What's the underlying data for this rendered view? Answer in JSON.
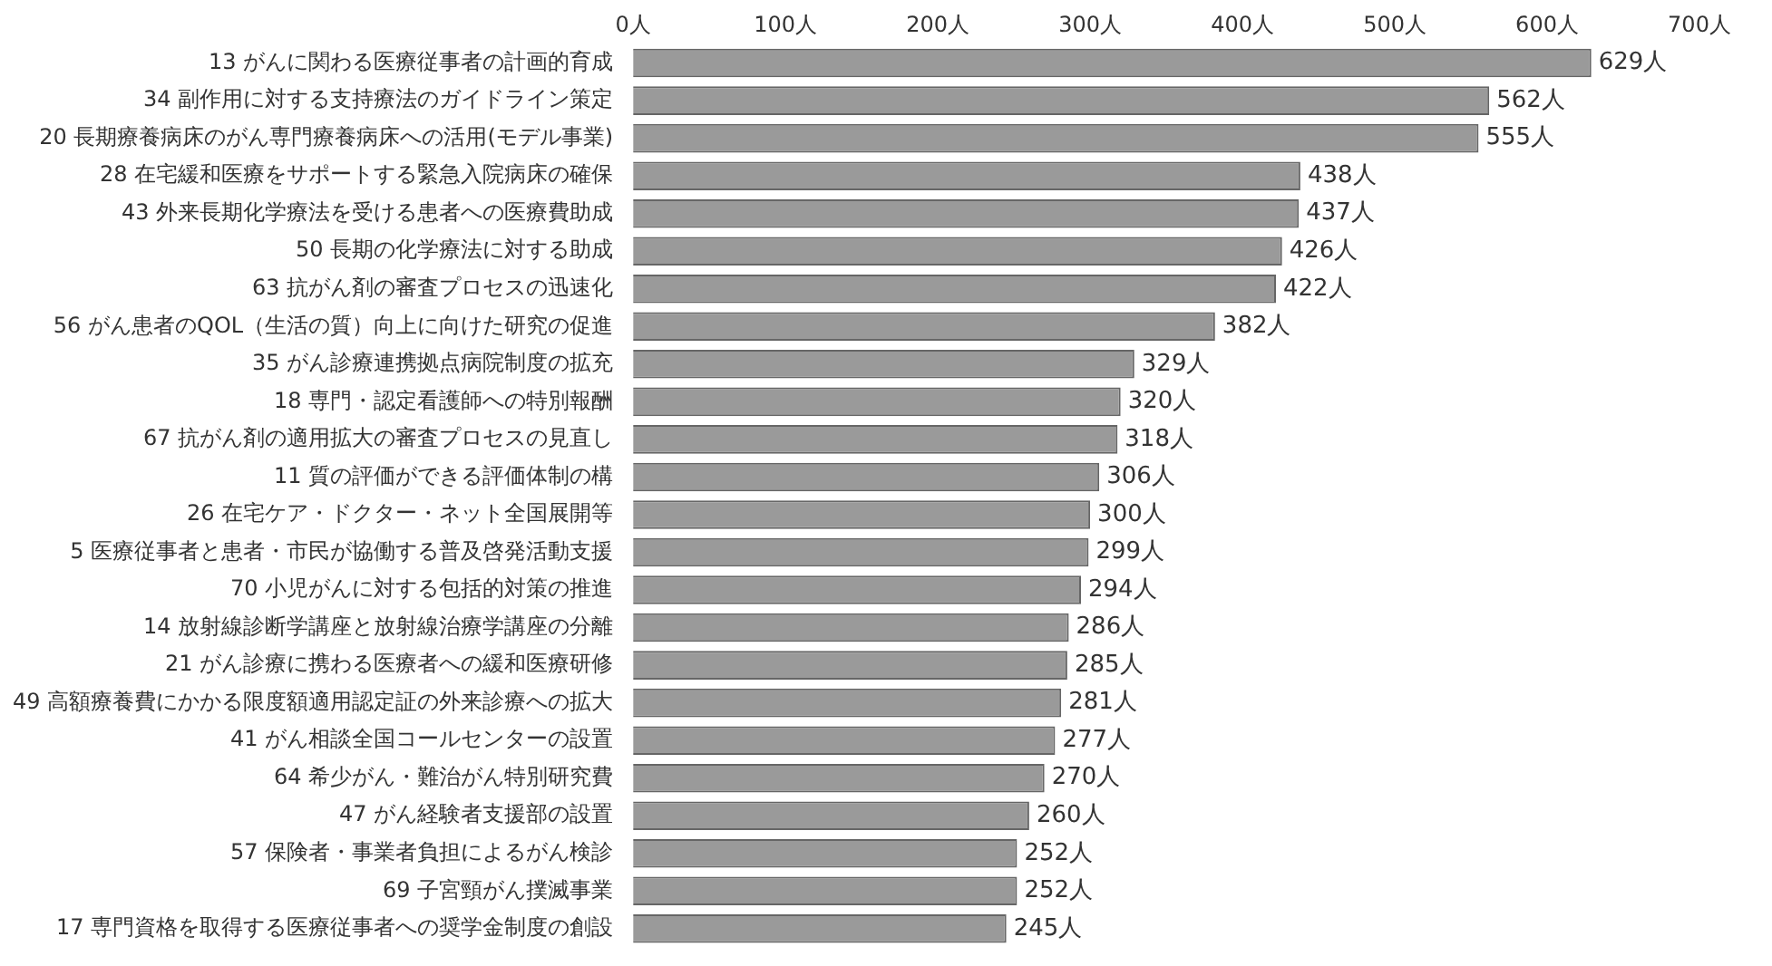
{
  "chart_data": {
    "type": "bar",
    "orientation": "horizontal",
    "categories": [
      "13 がんに関わる医療従事者の計画的育成",
      "34 副作用に対する支持療法のガイドライン策定",
      "20 長期療養病床のがん専門療養病床への活用(モデル事業)",
      "28 在宅緩和医療をサポートする緊急入院病床の確保",
      "43 外来長期化学療法を受ける患者への医療費助成",
      "50 長期の化学療法に対する助成",
      "63 抗がん剤の審査プロセスの迅速化",
      "56 がん患者のQOL（生活の質）向上に向けた研究の促進",
      "35 がん診療連携拠点病院制度の拡充",
      "18 専門・認定看護師への特別報酬",
      "67 抗がん剤の適用拡大の審査プロセスの見直し",
      "11 質の評価ができる評価体制の構",
      "26 在宅ケア・ドクター・ネット全国展開等",
      "5 医療従事者と患者・市民が協働する普及啓発活動支援",
      "70 小児がんに対する包括的対策の推進",
      "14 放射線診断学講座と放射線治療学講座の分離",
      "21 がん診療に携わる医療者への緩和医療研修",
      "49 高額療養費にかかる限度額適用認定証の外来診療への拡大",
      "41 がん相談全国コールセンターの設置",
      "64 希少がん・難治がん特別研究費",
      "47 がん経験者支援部の設置",
      "57 保険者・事業者負担によるがん検診",
      "69 子宮頸がん撲滅事業",
      "17 専門資格を取得する医療従事者への奨学金制度の創設"
    ],
    "values": [
      629,
      562,
      555,
      438,
      437,
      426,
      422,
      382,
      329,
      320,
      318,
      306,
      300,
      299,
      294,
      286,
      285,
      281,
      277,
      270,
      260,
      252,
      252,
      245
    ],
    "value_labels": [
      "629人",
      "562人",
      "555人",
      "438人",
      "437人",
      "426人",
      "422人",
      "382人",
      "329人",
      "320人",
      "318人",
      "306人",
      "300人",
      "299人",
      "294人",
      "286人",
      "285人",
      "281人",
      "277人",
      "270人",
      "260人",
      "252人",
      "252人",
      "245人"
    ],
    "color": "#9a9a9a",
    "xlim": [
      0,
      700
    ],
    "xticks": [
      {
        "value": 0,
        "label": "0人"
      },
      {
        "value": 100,
        "label": "100人"
      },
      {
        "value": 200,
        "label": "200人"
      },
      {
        "value": 300,
        "label": "300人"
      },
      {
        "value": 400,
        "label": "400人"
      },
      {
        "value": 500,
        "label": "500人"
      },
      {
        "value": 600,
        "label": "600人"
      },
      {
        "value": 700,
        "label": "700人"
      }
    ],
    "grid": false,
    "legend": false
  }
}
